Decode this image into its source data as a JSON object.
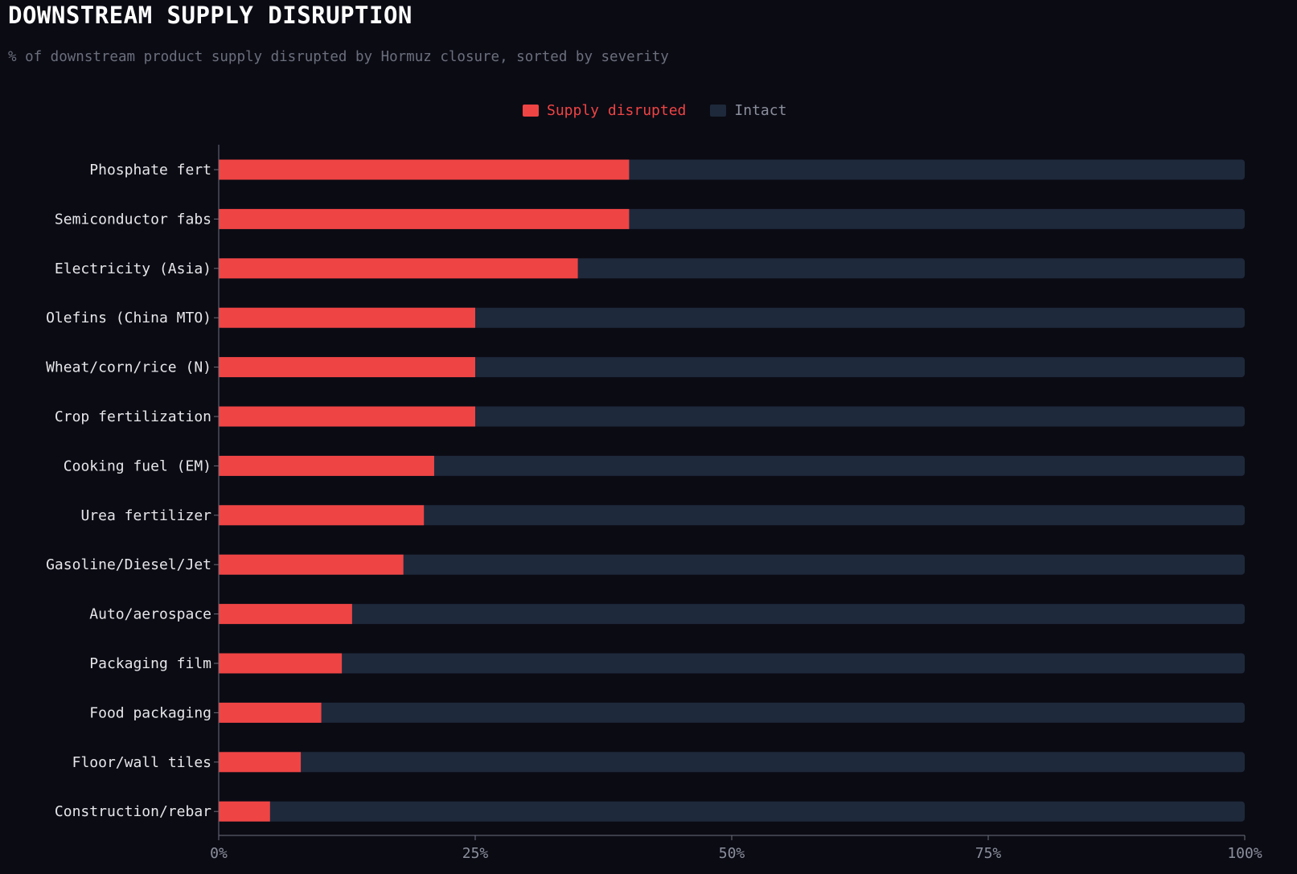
{
  "header": {
    "title": "DOWNSTREAM SUPPLY DISRUPTION",
    "subtitle": "% of downstream product supply disrupted by Hormuz closure, sorted by severity"
  },
  "legend": {
    "items": [
      {
        "label": "Supply disrupted",
        "color": "#ef4444"
      },
      {
        "label": "Intact",
        "color": "#1e293b"
      }
    ],
    "placement": "top-center"
  },
  "chart_data": {
    "type": "bar",
    "orientation": "horizontal",
    "stacked": true,
    "categories": [
      "Phosphate fert",
      "Semiconductor fabs",
      "Electricity (Asia)",
      "Olefins (China MTO)",
      "Wheat/corn/rice (N)",
      "Crop fertilization",
      "Cooking fuel (EM)",
      "Urea fertilizer",
      "Gasoline/Diesel/Jet",
      "Auto/aerospace",
      "Packaging film",
      "Food packaging",
      "Floor/wall tiles",
      "Construction/rebar"
    ],
    "series": [
      {
        "name": "Supply disrupted",
        "color": "#ef4444",
        "values": [
          40,
          40,
          35,
          25,
          25,
          25,
          21,
          20,
          18,
          13,
          12,
          10,
          8,
          5
        ]
      },
      {
        "name": "Intact",
        "color": "#1e293b",
        "values": [
          60,
          60,
          65,
          75,
          75,
          75,
          79,
          80,
          82,
          87,
          88,
          90,
          92,
          95
        ]
      }
    ],
    "xlim": [
      0,
      100
    ],
    "xticks": [
      "0%",
      "25%",
      "50%",
      "75%",
      "100%"
    ],
    "xtick_values": [
      0,
      25,
      50,
      75,
      100
    ],
    "grid": false
  }
}
